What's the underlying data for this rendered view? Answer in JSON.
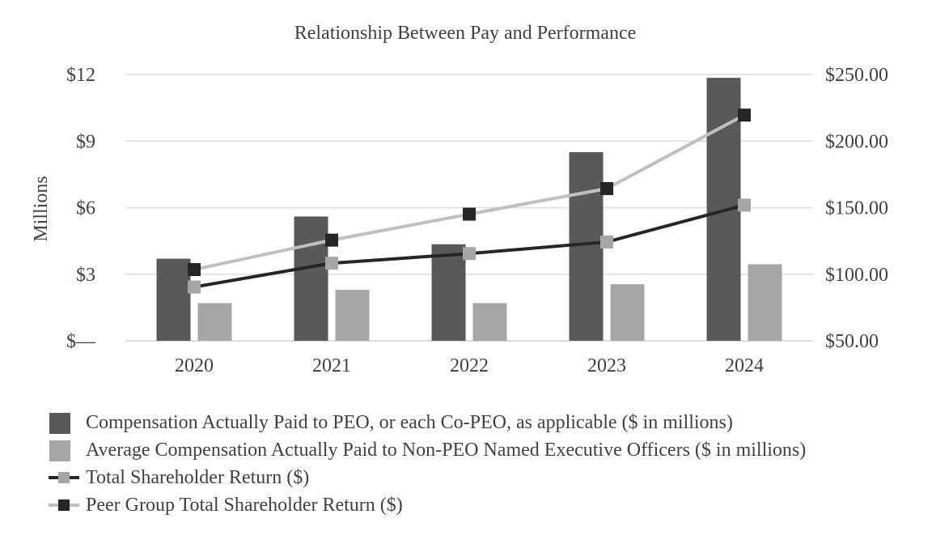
{
  "chart_data": {
    "type": "bar",
    "title": "Relationship Between Pay and Performance",
    "categories": [
      "2020",
      "2021",
      "2022",
      "2023",
      "2024"
    ],
    "ylabel": "Millions",
    "ylim": [
      0,
      12
    ],
    "y_ticks": [
      "$—",
      "$3",
      "$6",
      "$9",
      "$12"
    ],
    "y2lim": [
      50,
      250
    ],
    "y2_ticks": [
      "$50.00",
      "$100.00",
      "$150.00",
      "$200.00",
      "$250.00"
    ],
    "grid": true,
    "legend_position": "bottom",
    "bar_series": [
      {
        "name": "Compensation Actually Paid to PEO, or each Co-PEO, as applicable ($ in millions)",
        "values": [
          3.7,
          5.6,
          4.35,
          8.5,
          11.85
        ],
        "color": "#595959",
        "axis": "left"
      },
      {
        "name": "Average Compensation Actually Paid to Non-PEO Named Executive Officers ($ in millions)",
        "values": [
          1.7,
          2.3,
          1.7,
          2.55,
          3.45
        ],
        "color": "#a6a6a6",
        "axis": "left"
      }
    ],
    "line_series": [
      {
        "name": "Total Shareholder Return ($)",
        "values": [
          90.4,
          108.3,
          115.5,
          124.2,
          151.9
        ],
        "line_color": "#262626",
        "marker_color": "#a6a6a6",
        "axis": "right"
      },
      {
        "name": "Peer Group Total Shareholder Return ($)",
        "values": [
          103.5,
          125.6,
          145.1,
          164.3,
          219.5
        ],
        "line_color": "#bfbfbf",
        "marker_color": "#262626",
        "axis": "right"
      }
    ]
  }
}
